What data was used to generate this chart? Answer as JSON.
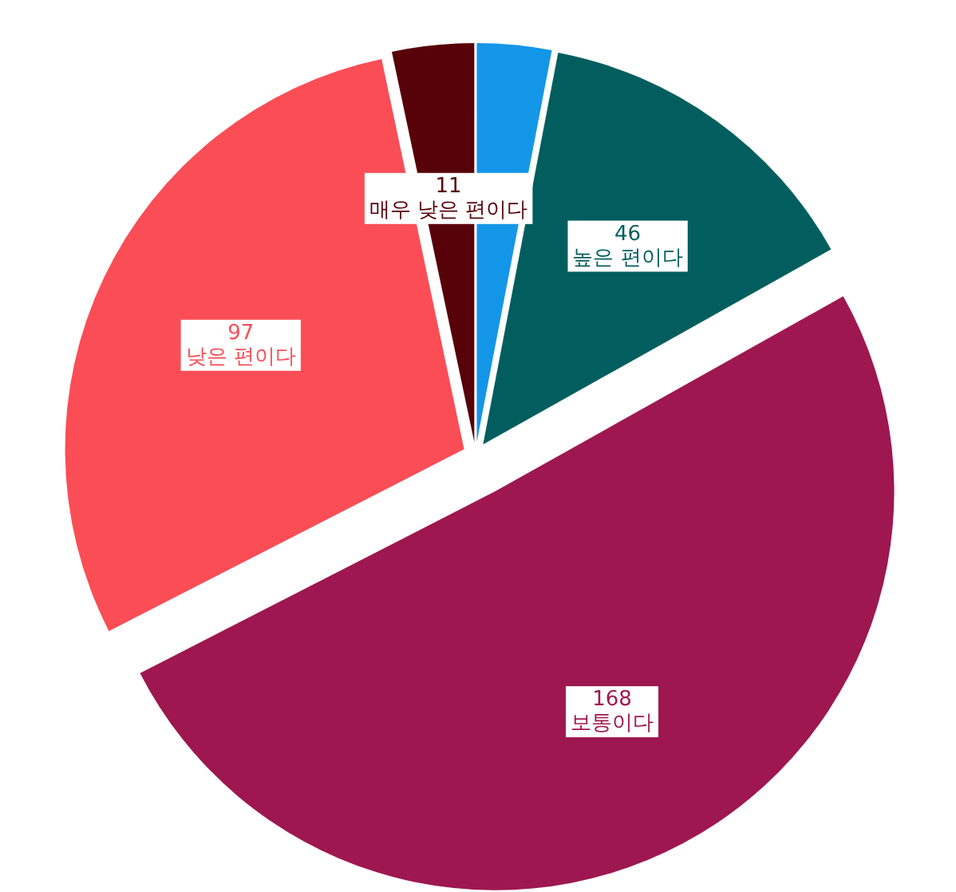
{
  "chart_data": {
    "type": "pie",
    "categories": [
      null,
      "높은 편이다",
      "보통이다",
      "낮은 편이다",
      "매우 낮은 편이다"
    ],
    "values": [
      10,
      46,
      168,
      97,
      11
    ],
    "value_labels": [
      null,
      "46",
      "168",
      "97",
      "11"
    ],
    "colors": [
      "#1496e8",
      "#025e5e",
      "#9e1750",
      "#fb4d56",
      "#570208"
    ]
  }
}
